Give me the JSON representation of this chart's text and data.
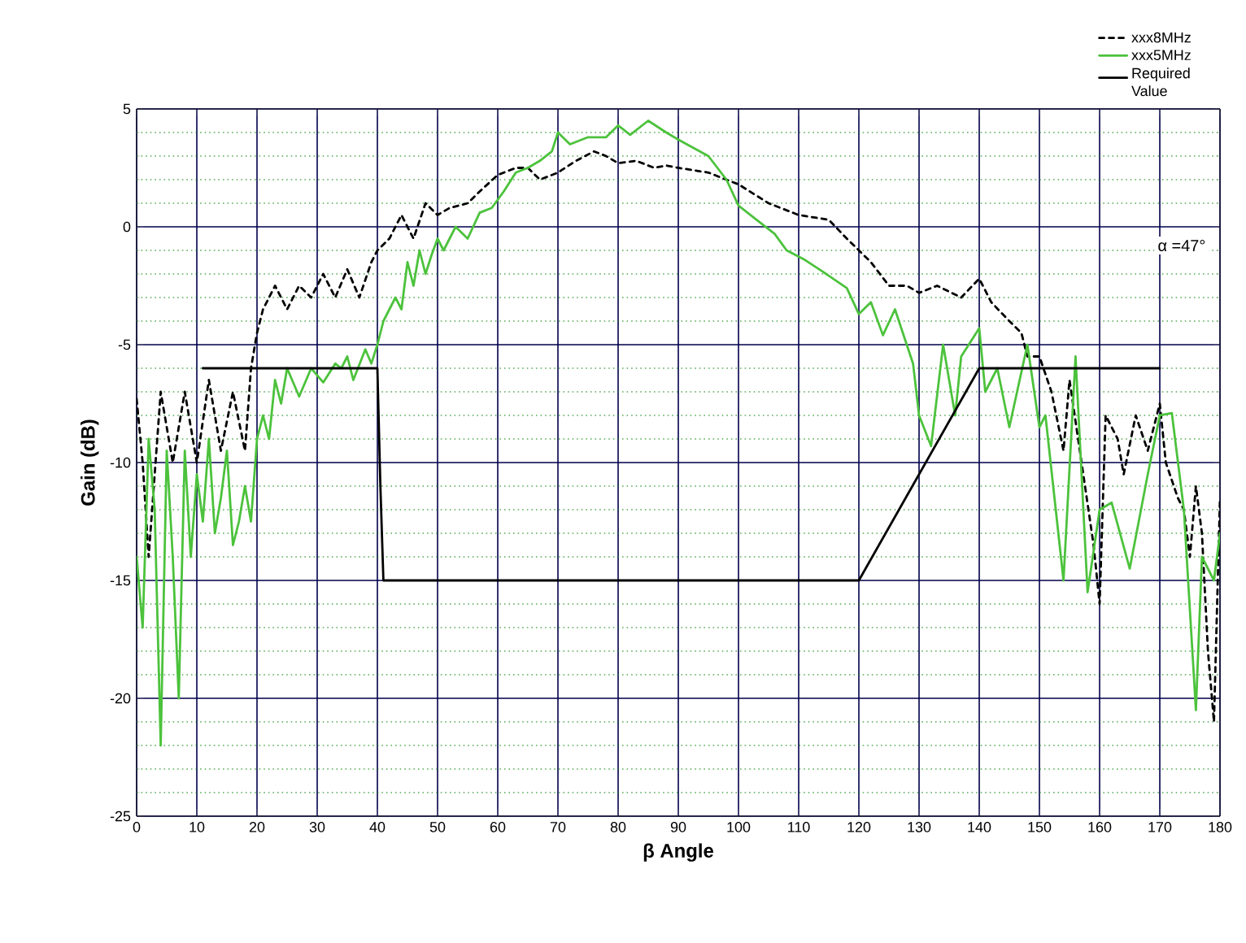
{
  "chart_data": {
    "type": "line",
    "xlabel": "β Angle",
    "ylabel": "Gain (dB)",
    "xlim": [
      0,
      180
    ],
    "xticks": [
      0,
      10,
      20,
      30,
      40,
      50,
      60,
      70,
      80,
      90,
      100,
      110,
      120,
      130,
      140,
      150,
      160,
      170,
      180
    ],
    "ylim": [
      -25,
      5
    ],
    "yticks": [
      -25,
      {
        "value": -24,
        "label": null
      },
      {
        "value": -23,
        "label": null
      },
      {
        "value": -22,
        "label": null
      },
      {
        "value": -21,
        "label": null
      },
      -20,
      {
        "value": -19,
        "label": null
      },
      {
        "value": -18,
        "label": null
      },
      {
        "value": -17,
        "label": null
      },
      {
        "value": -16,
        "label": null
      },
      -15,
      {
        "value": -14,
        "label": null
      },
      {
        "value": -13,
        "label": null
      },
      {
        "value": -12,
        "label": null
      },
      {
        "value": -11,
        "label": null
      },
      -10,
      {
        "value": -9,
        "label": null
      },
      {
        "value": -8,
        "label": null
      },
      {
        "value": -7,
        "label": null
      },
      {
        "value": -6,
        "label": null
      },
      -5,
      {
        "value": -4,
        "label": null
      },
      {
        "value": -3,
        "label": null
      },
      {
        "value": -2,
        "label": null
      },
      {
        "value": -1,
        "label": null
      },
      0,
      {
        "value": 1,
        "label": null
      },
      {
        "value": 2,
        "label": null
      },
      {
        "value": 3,
        "label": null
      },
      {
        "value": 4,
        "label": null
      },
      5
    ],
    "grid": true,
    "legend": "top right",
    "marker": "none",
    "annotations": [
      "α =47°"
    ],
    "series": [
      {
        "name": "xxx8MHz",
        "color": "#000000",
        "line_style": "dashed",
        "x": [
          0,
          1,
          2,
          4,
          6,
          8,
          10,
          12,
          14,
          16,
          18,
          19,
          20,
          21,
          23,
          25,
          27,
          29,
          31,
          33,
          35,
          37,
          39,
          40,
          42,
          44,
          46,
          48,
          50,
          52,
          55,
          57,
          60,
          63,
          65,
          67,
          70,
          73,
          76,
          78,
          80,
          83,
          86,
          88,
          90,
          95,
          100,
          105,
          110,
          115,
          118,
          120,
          122,
          125,
          128,
          130,
          133,
          137,
          140,
          142,
          145,
          147,
          148,
          150,
          152,
          154,
          155,
          157,
          159,
          160,
          161,
          163,
          164,
          166,
          168,
          170,
          171,
          173,
          174,
          175,
          176,
          177,
          178,
          179,
          180
        ],
        "values": [
          -7.3,
          -10,
          -14,
          -7,
          -10,
          -7,
          -10,
          -6.5,
          -9.5,
          -7,
          -9.5,
          -6,
          -4.5,
          -3.5,
          -2.5,
          -3.5,
          -2.5,
          -3,
          -2,
          -3,
          -1.8,
          -3,
          -1.5,
          -1,
          -0.5,
          0.5,
          -0.5,
          1,
          0.5,
          0.8,
          1,
          1.5,
          2.2,
          2.5,
          2.5,
          2,
          2.3,
          2.8,
          3.2,
          3,
          2.7,
          2.8,
          2.5,
          2.6,
          2.5,
          2.3,
          1.8,
          1,
          0.5,
          0.3,
          -0.5,
          -1,
          -1.5,
          -2.5,
          -2.5,
          -2.8,
          -2.5,
          -3,
          -2.2,
          -3.2,
          -4,
          -4.5,
          -5.5,
          -5.5,
          -7,
          -9.5,
          -6.5,
          -10,
          -13.5,
          -16,
          -8,
          -9,
          -10.5,
          -8,
          -9.5,
          -7.5,
          -10,
          -11.5,
          -12,
          -14,
          -11,
          -13,
          -18,
          -21,
          -11.5
        ]
      },
      {
        "name": "xxx5MHz",
        "color": "#4cc23c",
        "line_style": "solid",
        "x": [
          0,
          1,
          2,
          3,
          4,
          5,
          6,
          7,
          8,
          9,
          10,
          11,
          12,
          13,
          14,
          15,
          16,
          17,
          18,
          19,
          20,
          21,
          22,
          23,
          24,
          25,
          27,
          29,
          31,
          33,
          34,
          35,
          36,
          38,
          39,
          40,
          41,
          42,
          43,
          44,
          45,
          46,
          47,
          48,
          49,
          50,
          51,
          53,
          55,
          57,
          59,
          61,
          63,
          65,
          67,
          69,
          70,
          72,
          75,
          78,
          80,
          82,
          85,
          88,
          90,
          95,
          98,
          100,
          103,
          106,
          108,
          111,
          114,
          118,
          120,
          122,
          124,
          126,
          129,
          130,
          132,
          134,
          136,
          137,
          140,
          141,
          143,
          145,
          148,
          150,
          151,
          154,
          156,
          158,
          160,
          162,
          165,
          168,
          170,
          172,
          174,
          176,
          177,
          179,
          180
        ],
        "values": [
          -14,
          -17,
          -9,
          -12,
          -22,
          -9.5,
          -14,
          -20,
          -9.5,
          -14,
          -10.5,
          -12.5,
          -9,
          -13,
          -11.5,
          -9.5,
          -13.5,
          -12.5,
          -11,
          -12.5,
          -9,
          -8,
          -9,
          -6.5,
          -7.5,
          -6,
          -7.2,
          -6,
          -6.6,
          -5.8,
          -6,
          -5.5,
          -6.5,
          -5.2,
          -5.8,
          -5,
          -4,
          -3.5,
          -3,
          -3.5,
          -1.5,
          -2.5,
          -1,
          -2,
          -1.2,
          -0.5,
          -1,
          0,
          -0.5,
          0.6,
          0.8,
          1.5,
          2.3,
          2.5,
          2.8,
          3.2,
          4,
          3.5,
          3.8,
          3.8,
          4.3,
          3.9,
          4.5,
          4,
          3.7,
          3,
          2,
          0.9,
          0.3,
          -0.3,
          -1,
          -1.4,
          -1.9,
          -2.6,
          -3.7,
          -3.2,
          -4.6,
          -3.5,
          -5.8,
          -8,
          -9.3,
          -5,
          -8,
          -5.5,
          -4.3,
          -7,
          -6,
          -8.5,
          -5,
          -8.5,
          -8,
          -15,
          -5.5,
          -15.5,
          -12,
          -11.7,
          -14.5,
          -10.5,
          -8,
          -7.9,
          -12,
          -20.5,
          -14,
          -15,
          -13
        ]
      },
      {
        "name": "Required Value",
        "color": "#000000",
        "line_style": "solid",
        "x": [
          11,
          40,
          40.5,
          41,
          120,
          140,
          170
        ],
        "values": [
          -6,
          -6,
          -11,
          -15,
          -15,
          -6,
          -6
        ]
      }
    ]
  }
}
